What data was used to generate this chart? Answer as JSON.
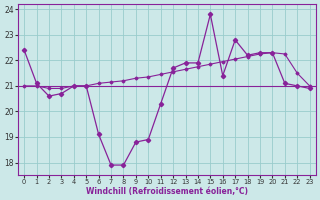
{
  "xlabel": "Windchill (Refroidissement éolien,°C)",
  "background_color": "#cce8e8",
  "line_color": "#882299",
  "grid_color": "#99cccc",
  "hours": [
    0,
    1,
    2,
    3,
    4,
    5,
    6,
    7,
    8,
    9,
    10,
    11,
    12,
    13,
    14,
    15,
    16,
    17,
    18,
    19,
    20,
    21,
    22,
    23
  ],
  "windchill": [
    22.4,
    21.1,
    20.6,
    20.7,
    21.0,
    21.0,
    19.1,
    17.9,
    17.9,
    18.8,
    18.9,
    20.3,
    21.7,
    21.9,
    21.9,
    23.8,
    21.4,
    22.8,
    22.2,
    22.3,
    22.3,
    21.1,
    21.0,
    20.9
  ],
  "flat_line_y": 21.0,
  "trend_line": [
    21.0,
    21.0,
    20.9,
    20.9,
    21.0,
    21.0,
    21.1,
    21.15,
    21.2,
    21.3,
    21.35,
    21.45,
    21.55,
    21.65,
    21.75,
    21.85,
    21.95,
    22.05,
    22.15,
    22.25,
    22.3,
    22.25,
    21.5,
    21.0
  ],
  "ylim": [
    17.5,
    24.2
  ],
  "xlim": [
    -0.5,
    23.5
  ],
  "xticks": [
    0,
    1,
    2,
    3,
    4,
    5,
    6,
    7,
    8,
    9,
    10,
    11,
    12,
    13,
    14,
    15,
    16,
    17,
    18,
    19,
    20,
    21,
    22,
    23
  ],
  "yticks": [
    18,
    19,
    20,
    21,
    22,
    23,
    24
  ]
}
